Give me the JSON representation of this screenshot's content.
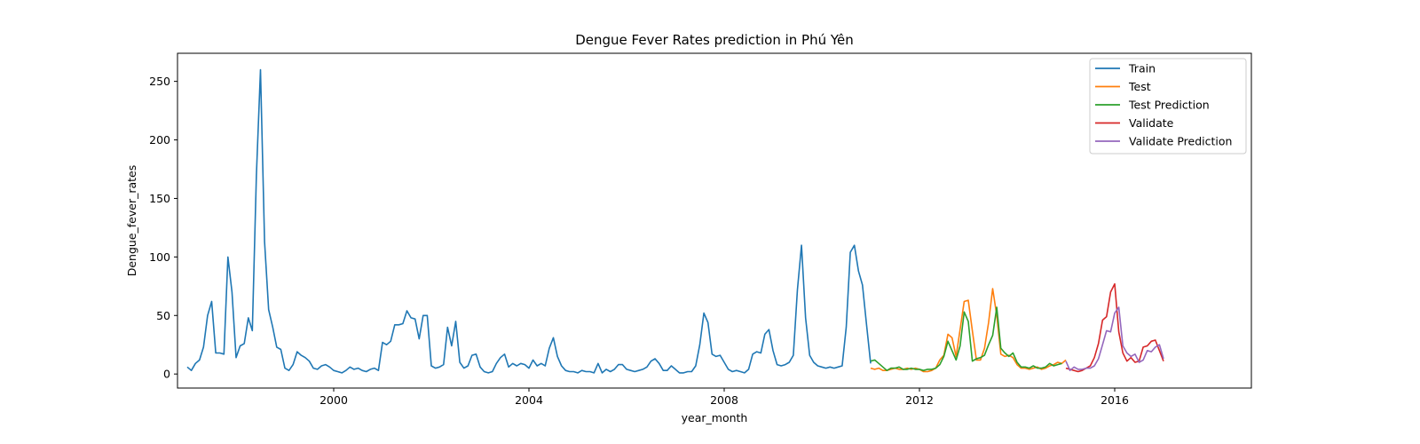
{
  "chart_data": {
    "type": "line",
    "title": "Dengue Fever Rates prediction in Phú Yên",
    "xlabel": "year_month",
    "ylabel": "Dengue_fever_rates",
    "xlim": [
      1996.8,
      2018.8
    ],
    "ylim": [
      -12,
      274
    ],
    "x_ticks": [
      2000,
      2004,
      2008,
      2012,
      2016
    ],
    "y_ticks": [
      0,
      50,
      100,
      150,
      200,
      250
    ],
    "grid": false,
    "legend_position": "top-right",
    "series": [
      {
        "name": "Train",
        "color": "#1f77b4",
        "x": [
          1997.0,
          1997.083,
          1997.167,
          1997.25,
          1997.333,
          1997.417,
          1997.5,
          1997.583,
          1997.667,
          1997.75,
          1997.833,
          1997.917,
          1998.0,
          1998.083,
          1998.167,
          1998.25,
          1998.333,
          1998.417,
          1998.5,
          1998.583,
          1998.667,
          1998.75,
          1998.833,
          1998.917,
          1999.0,
          1999.083,
          1999.167,
          1999.25,
          1999.333,
          1999.417,
          1999.5,
          1999.583,
          1999.667,
          1999.75,
          1999.833,
          1999.917,
          2000.0,
          2000.083,
          2000.167,
          2000.25,
          2000.333,
          2000.417,
          2000.5,
          2000.583,
          2000.667,
          2000.75,
          2000.833,
          2000.917,
          2001.0,
          2001.083,
          2001.167,
          2001.25,
          2001.333,
          2001.417,
          2001.5,
          2001.583,
          2001.667,
          2001.75,
          2001.833,
          2001.917,
          2002.0,
          2002.083,
          2002.167,
          2002.25,
          2002.333,
          2002.417,
          2002.5,
          2002.583,
          2002.667,
          2002.75,
          2002.833,
          2002.917,
          2003.0,
          2003.083,
          2003.167,
          2003.25,
          2003.333,
          2003.417,
          2003.5,
          2003.583,
          2003.667,
          2003.75,
          2003.833,
          2003.917,
          2004.0,
          2004.083,
          2004.167,
          2004.25,
          2004.333,
          2004.417,
          2004.5,
          2004.583,
          2004.667,
          2004.75,
          2004.833,
          2004.917,
          2005.0,
          2005.083,
          2005.167,
          2005.25,
          2005.333,
          2005.417,
          2005.5,
          2005.583,
          2005.667,
          2005.75,
          2005.833,
          2005.917,
          2006.0,
          2006.083,
          2006.167,
          2006.25,
          2006.333,
          2006.417,
          2006.5,
          2006.583,
          2006.667,
          2006.75,
          2006.833,
          2006.917,
          2007.0,
          2007.083,
          2007.167,
          2007.25,
          2007.333,
          2007.417,
          2007.5,
          2007.583,
          2007.667,
          2007.75,
          2007.833,
          2007.917,
          2008.0,
          2008.083,
          2008.167,
          2008.25,
          2008.333,
          2008.417,
          2008.5,
          2008.583,
          2008.667,
          2008.75,
          2008.833,
          2008.917,
          2009.0,
          2009.083,
          2009.167,
          2009.25,
          2009.333,
          2009.417,
          2009.5,
          2009.583,
          2009.667,
          2009.75,
          2009.833,
          2009.917,
          2010.0,
          2010.083,
          2010.167,
          2010.25,
          2010.333,
          2010.417,
          2010.5,
          2010.583,
          2010.667,
          2010.75,
          2010.833,
          2010.917,
          2011.0
        ],
        "values": [
          6,
          3,
          9,
          12,
          23,
          50,
          62,
          18,
          18,
          17,
          100,
          70,
          14,
          24,
          26,
          48,
          37,
          170,
          260,
          113,
          55,
          40,
          23,
          21,
          5,
          3,
          8,
          19,
          16,
          14,
          11,
          5,
          4,
          7,
          8,
          6,
          3,
          2,
          1,
          3,
          6,
          4,
          5,
          3,
          2,
          4,
          5,
          3,
          27,
          25,
          28,
          42,
          42,
          43,
          54,
          48,
          47,
          30,
          50,
          50,
          7,
          5,
          6,
          8,
          40,
          24,
          45,
          10,
          5,
          7,
          16,
          17,
          6,
          2,
          1,
          2,
          9,
          14,
          17,
          6,
          9,
          7,
          9,
          8,
          5,
          12,
          7,
          9,
          7,
          22,
          31,
          15,
          7,
          3,
          2,
          2,
          1,
          3,
          2,
          2,
          1,
          9,
          1,
          4,
          2,
          4,
          8,
          8,
          4,
          3,
          2,
          3,
          4,
          6,
          11,
          13,
          9,
          3,
          3,
          7,
          4,
          1,
          1,
          2,
          2,
          7,
          25,
          52,
          44,
          17,
          15,
          16,
          10,
          4,
          2,
          3,
          2,
          1,
          4,
          17,
          19,
          18,
          34,
          38,
          20,
          8,
          7,
          8,
          10,
          16,
          72,
          110,
          48,
          16,
          10,
          7,
          6,
          5,
          6,
          5,
          6,
          7,
          40,
          104,
          110,
          88,
          76,
          42,
          9
        ]
      },
      {
        "name": "Test",
        "color": "#ff7f0e",
        "x": [
          2011.0,
          2011.083,
          2011.167,
          2011.25,
          2011.333,
          2011.417,
          2011.5,
          2011.583,
          2011.667,
          2011.75,
          2011.833,
          2011.917,
          2012.0,
          2012.083,
          2012.167,
          2012.25,
          2012.333,
          2012.417,
          2012.5,
          2012.583,
          2012.667,
          2012.75,
          2012.833,
          2012.917,
          2013.0,
          2013.083,
          2013.167,
          2013.25,
          2013.333,
          2013.417,
          2013.5,
          2013.583,
          2013.667,
          2013.75,
          2013.833,
          2013.917,
          2014.0,
          2014.083,
          2014.167,
          2014.25,
          2014.333,
          2014.417,
          2014.5,
          2014.583,
          2014.667,
          2014.75,
          2014.833,
          2014.917,
          2015.0
        ],
        "values": [
          5,
          4,
          5,
          3,
          3,
          4,
          5,
          4,
          4,
          5,
          4,
          5,
          4,
          2,
          2,
          3,
          5,
          12,
          16,
          34,
          31,
          15,
          38,
          62,
          63,
          37,
          12,
          12,
          22,
          44,
          73,
          50,
          17,
          15,
          16,
          14,
          8,
          5,
          5,
          4,
          5,
          6,
          4,
          5,
          7,
          8,
          10,
          9,
          12
        ]
      },
      {
        "name": "Test Prediction",
        "color": "#2ca02c",
        "x": [
          2011.0,
          2011.083,
          2011.167,
          2011.25,
          2011.333,
          2011.417,
          2011.5,
          2011.583,
          2011.667,
          2011.75,
          2011.833,
          2011.917,
          2012.0,
          2012.083,
          2012.167,
          2012.25,
          2012.333,
          2012.417,
          2012.5,
          2012.583,
          2012.667,
          2012.75,
          2012.833,
          2012.917,
          2013.0,
          2013.083,
          2013.167,
          2013.25,
          2013.333,
          2013.417,
          2013.5,
          2013.583,
          2013.667,
          2013.75,
          2013.833,
          2013.917,
          2014.0,
          2014.083,
          2014.167,
          2014.25,
          2014.333,
          2014.417,
          2014.5,
          2014.583,
          2014.667,
          2014.75,
          2014.833,
          2014.917
        ],
        "values": [
          11,
          12,
          9,
          6,
          3,
          5,
          5,
          6,
          4,
          4,
          5,
          4,
          4,
          3,
          4,
          4,
          5,
          8,
          15,
          28,
          20,
          12,
          24,
          53,
          45,
          11,
          13,
          14,
          16,
          25,
          33,
          57,
          22,
          18,
          15,
          18,
          10,
          6,
          6,
          5,
          7,
          5,
          5,
          6,
          9,
          7,
          8,
          9
        ]
      },
      {
        "name": "Validate",
        "color": "#d62728",
        "x": [
          2015.0,
          2015.083,
          2015.167,
          2015.25,
          2015.333,
          2015.417,
          2015.5,
          2015.583,
          2015.667,
          2015.75,
          2015.833,
          2015.917,
          2016.0,
          2016.083,
          2016.167,
          2016.25,
          2016.333,
          2016.417,
          2016.5,
          2016.583,
          2016.667,
          2016.75,
          2016.833,
          2016.917,
          2017.0
        ],
        "values": [
          5,
          4,
          3,
          2,
          3,
          5,
          7,
          14,
          26,
          46,
          49,
          70,
          77,
          36,
          18,
          11,
          14,
          10,
          11,
          23,
          24,
          28,
          29,
          20,
          11
        ]
      },
      {
        "name": "Validate Prediction",
        "color": "#9467bd",
        "x": [
          2015.0,
          2015.083,
          2015.167,
          2015.25,
          2015.333,
          2015.417,
          2015.5,
          2015.583,
          2015.667,
          2015.75,
          2015.833,
          2015.917,
          2016.0,
          2016.083,
          2016.167,
          2016.25,
          2016.333,
          2016.417,
          2016.5,
          2016.583,
          2016.667,
          2016.75,
          2016.833,
          2016.917,
          2017.0
        ],
        "values": [
          11,
          3,
          6,
          4,
          4,
          5,
          5,
          7,
          13,
          25,
          37,
          36,
          52,
          57,
          24,
          18,
          15,
          17,
          10,
          12,
          20,
          19,
          23,
          25,
          13
        ]
      }
    ]
  }
}
